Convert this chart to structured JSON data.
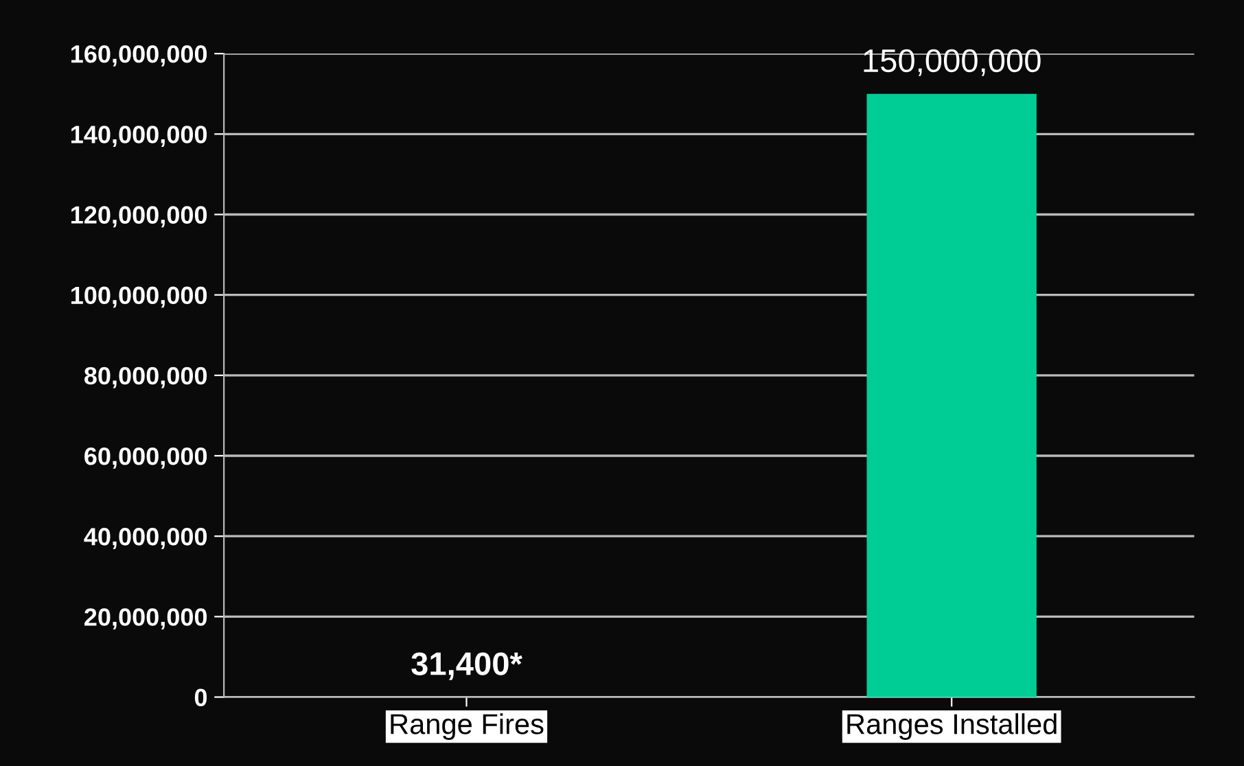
{
  "chart_data": {
    "type": "bar",
    "categories": [
      "Range Fires",
      "Ranges Installed"
    ],
    "values": [
      31400,
      150000000
    ],
    "colors": [
      "#009e78",
      "#00cc96"
    ],
    "value_labels": [
      "31,400*",
      "150,000,000"
    ],
    "ylim": [
      0,
      160000000
    ],
    "yticks": [
      {
        "value": 0,
        "label": "0"
      },
      {
        "value": 20000000,
        "label": "20,000,000"
      },
      {
        "value": 40000000,
        "label": "40,000,000"
      },
      {
        "value": 60000000,
        "label": "60,000,000"
      },
      {
        "value": 80000000,
        "label": "80,000,000"
      },
      {
        "value": 100000000,
        "label": "100,000,000"
      },
      {
        "value": 120000000,
        "label": "120,000,000"
      },
      {
        "value": 140000000,
        "label": "140,000,000"
      },
      {
        "value": 160000000,
        "label": "160,000,000"
      }
    ],
    "grid": "y"
  }
}
